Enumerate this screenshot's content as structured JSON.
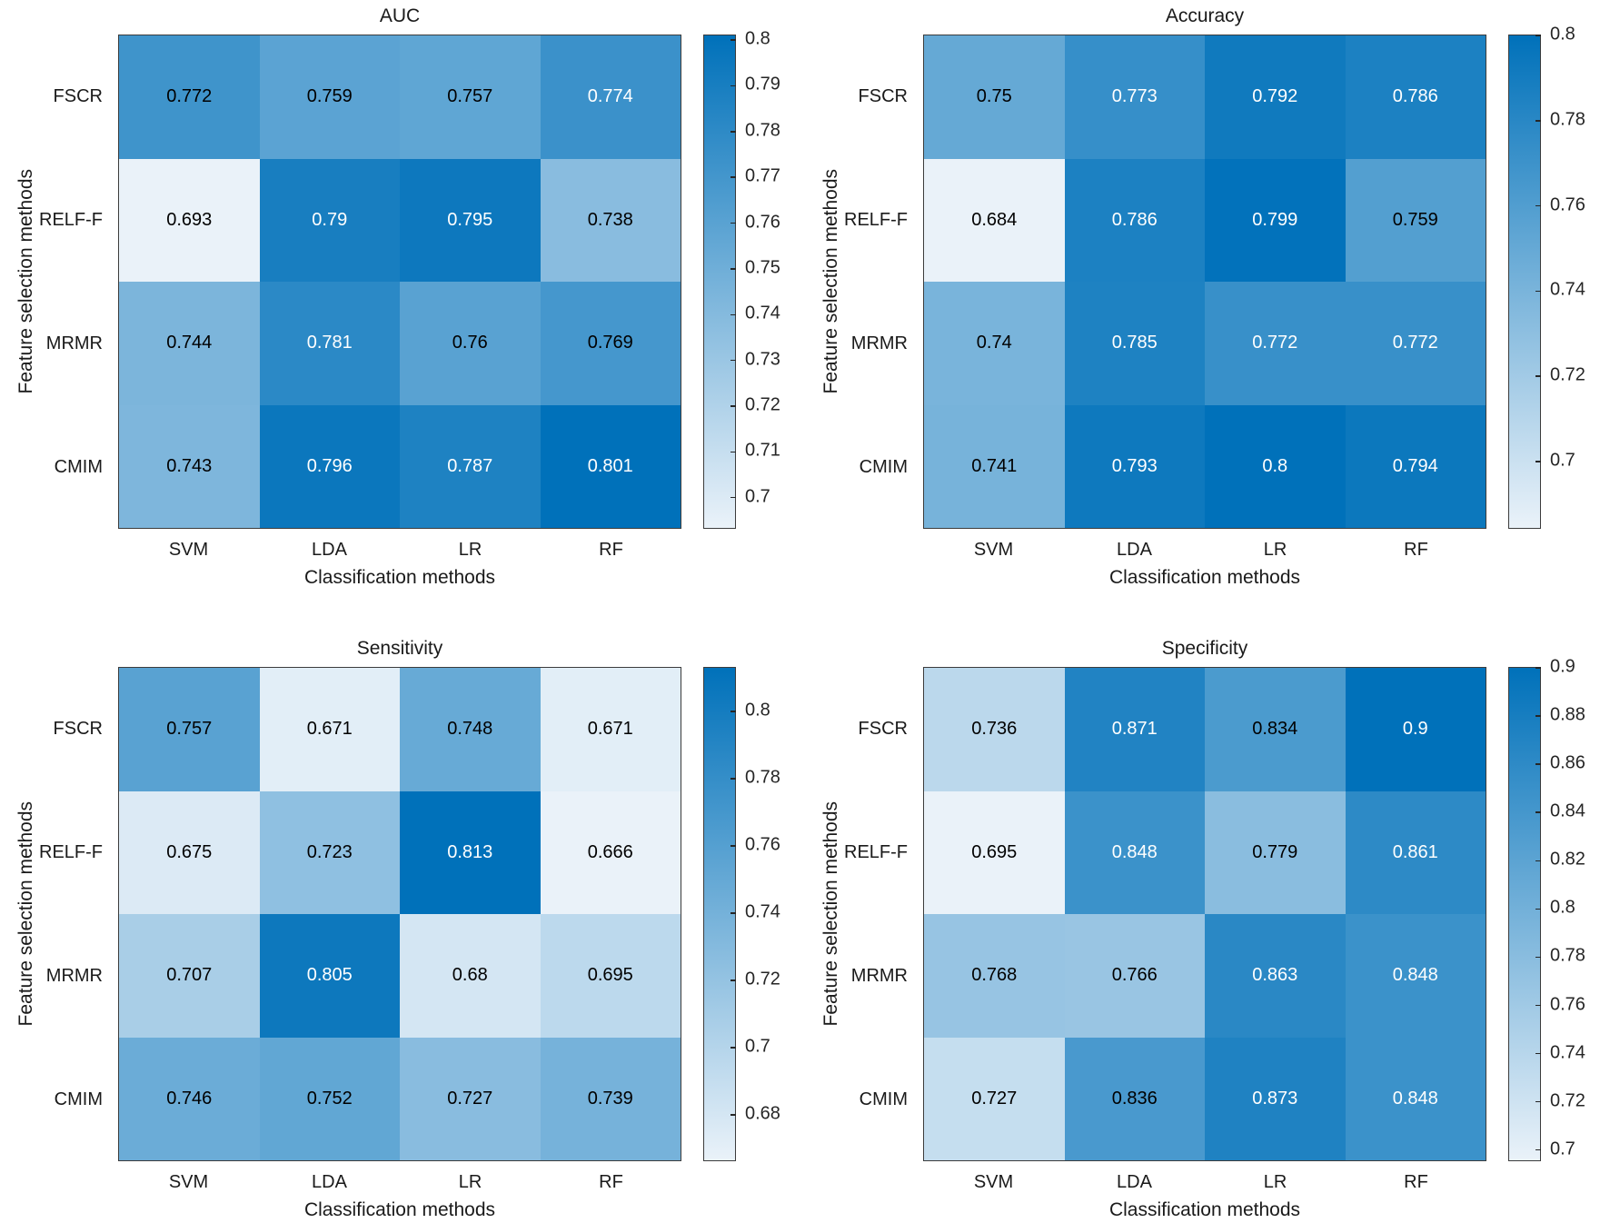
{
  "style": {
    "background": "#ffffff",
    "cmap_min_color": "#eaf2f9",
    "cmap_max_color": "#0071ba",
    "axis_border_color": "#3c3c3c",
    "tick_label_color": "#262626",
    "label_color": "#1a1a1a",
    "cell_text_dark": "#000000",
    "cell_text_light": "#ffffff"
  },
  "chart_data": [
    {
      "type": "heatmap",
      "title": "AUC",
      "xlabel": "Classification methods",
      "ylabel": "Feature selection methods",
      "x_categories": [
        "SVM",
        "LDA",
        "LR",
        "RF"
      ],
      "y_categories": [
        "FSCR",
        "RELF-F",
        "MRMR",
        "CMIM"
      ],
      "values": [
        [
          0.772,
          0.759,
          0.757,
          0.774
        ],
        [
          0.693,
          0.79,
          0.795,
          0.738
        ],
        [
          0.744,
          0.781,
          0.76,
          0.769
        ],
        [
          0.743,
          0.796,
          0.787,
          0.801
        ]
      ],
      "colorbar": {
        "position": "right",
        "min": 0.693,
        "max": 0.801,
        "ticks": [
          0.8,
          0.79,
          0.78,
          0.77,
          0.76,
          0.75,
          0.74,
          0.73,
          0.72,
          0.71,
          0.7
        ]
      }
    },
    {
      "type": "heatmap",
      "title": "Accuracy",
      "xlabel": "Classification methods",
      "ylabel": "Feature selection methods",
      "x_categories": [
        "SVM",
        "LDA",
        "LR",
        "RF"
      ],
      "y_categories": [
        "FSCR",
        "RELF-F",
        "MRMR",
        "CMIM"
      ],
      "values": [
        [
          0.75,
          0.773,
          0.792,
          0.786
        ],
        [
          0.684,
          0.786,
          0.799,
          0.759
        ],
        [
          0.74,
          0.785,
          0.772,
          0.772
        ],
        [
          0.741,
          0.793,
          0.8,
          0.794
        ]
      ],
      "colorbar": {
        "position": "right",
        "min": 0.684,
        "max": 0.8,
        "ticks": [
          0.8,
          0.78,
          0.76,
          0.74,
          0.72,
          0.7
        ]
      }
    },
    {
      "type": "heatmap",
      "title": "Sensitivity",
      "xlabel": "Classification methods",
      "ylabel": "Feature selection methods",
      "x_categories": [
        "SVM",
        "LDA",
        "LR",
        "RF"
      ],
      "y_categories": [
        "FSCR",
        "RELF-F",
        "MRMR",
        "CMIM"
      ],
      "values": [
        [
          0.757,
          0.671,
          0.748,
          0.671
        ],
        [
          0.675,
          0.723,
          0.813,
          0.666
        ],
        [
          0.707,
          0.805,
          0.68,
          0.695
        ],
        [
          0.746,
          0.752,
          0.727,
          0.739
        ]
      ],
      "colorbar": {
        "position": "right",
        "min": 0.666,
        "max": 0.813,
        "ticks": [
          0.8,
          0.78,
          0.76,
          0.74,
          0.72,
          0.7,
          0.68
        ]
      }
    },
    {
      "type": "heatmap",
      "title": "Specificity",
      "xlabel": "Classification methods",
      "ylabel": "Feature selection methods",
      "x_categories": [
        "SVM",
        "LDA",
        "LR",
        "RF"
      ],
      "y_categories": [
        "FSCR",
        "RELF-F",
        "MRMR",
        "CMIM"
      ],
      "values": [
        [
          0.736,
          0.871,
          0.834,
          0.9
        ],
        [
          0.695,
          0.848,
          0.779,
          0.861
        ],
        [
          0.768,
          0.766,
          0.863,
          0.848
        ],
        [
          0.727,
          0.836,
          0.873,
          0.848
        ]
      ],
      "colorbar": {
        "position": "right",
        "min": 0.695,
        "max": 0.9,
        "ticks": [
          0.9,
          0.88,
          0.86,
          0.84,
          0.82,
          0.8,
          0.78,
          0.76,
          0.74,
          0.72,
          0.7
        ]
      }
    }
  ]
}
